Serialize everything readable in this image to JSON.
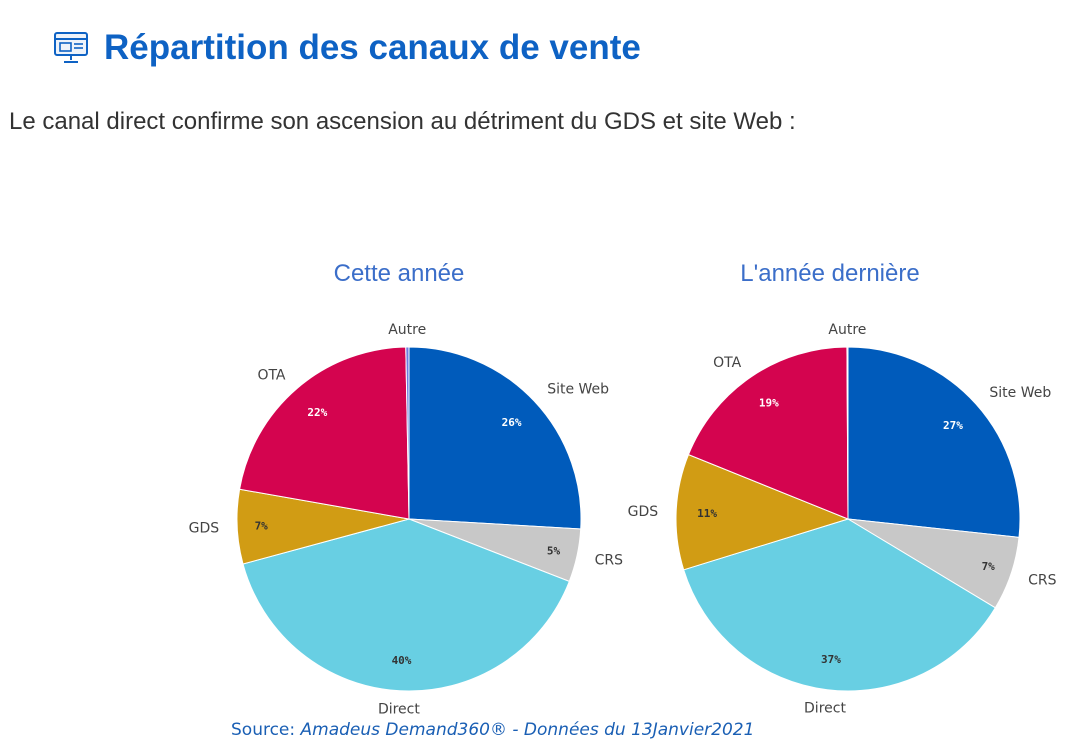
{
  "header": {
    "title": "Répartition des canaux de vente",
    "subtitle": "Le canal direct confirme son ascension au détriment du GDS et site Web :",
    "icon": "monitor-icon"
  },
  "colors": {
    "title": "#0e62c4",
    "site_web": "#005bbb",
    "crs": "#c8c8c8",
    "direct": "#68cfe3",
    "gds": "#d19c14",
    "ota": "#d4044f",
    "autre": "#6e7be0"
  },
  "chart_data": [
    {
      "type": "pie",
      "title": "Cette année",
      "slices": [
        {
          "label": "Site Web",
          "value": 26,
          "display": "26%",
          "color": "#005bbb"
        },
        {
          "label": "CRS",
          "value": 5,
          "display": "5%",
          "color": "#c8c8c8"
        },
        {
          "label": "Direct",
          "value": 40,
          "display": "40%",
          "color": "#68cfe3"
        },
        {
          "label": "GDS",
          "value": 7,
          "display": "7%",
          "color": "#d19c14"
        },
        {
          "label": "OTA",
          "value": 22,
          "display": "22%",
          "color": "#d4044f"
        },
        {
          "label": "Autre",
          "value": 0.3,
          "display": "",
          "color": "#6e7be0"
        }
      ]
    },
    {
      "type": "pie",
      "title": "L'année dernière",
      "slices": [
        {
          "label": "Site Web",
          "value": 27,
          "display": "27%",
          "color": "#005bbb"
        },
        {
          "label": "CRS",
          "value": 7,
          "display": "7%",
          "color": "#c8c8c8"
        },
        {
          "label": "Direct",
          "value": 37,
          "display": "37%",
          "color": "#68cfe3"
        },
        {
          "label": "GDS",
          "value": 11,
          "display": "11%",
          "color": "#d19c14"
        },
        {
          "label": "OTA",
          "value": 19,
          "display": "19%",
          "color": "#d4044f"
        },
        {
          "label": "Autre",
          "value": 0.1,
          "display": "",
          "color": "#6e7be0"
        }
      ]
    }
  ],
  "source": {
    "prefix": "Source: ",
    "text": "Amadeus Demand360® - Données du 13Janvier2021"
  }
}
